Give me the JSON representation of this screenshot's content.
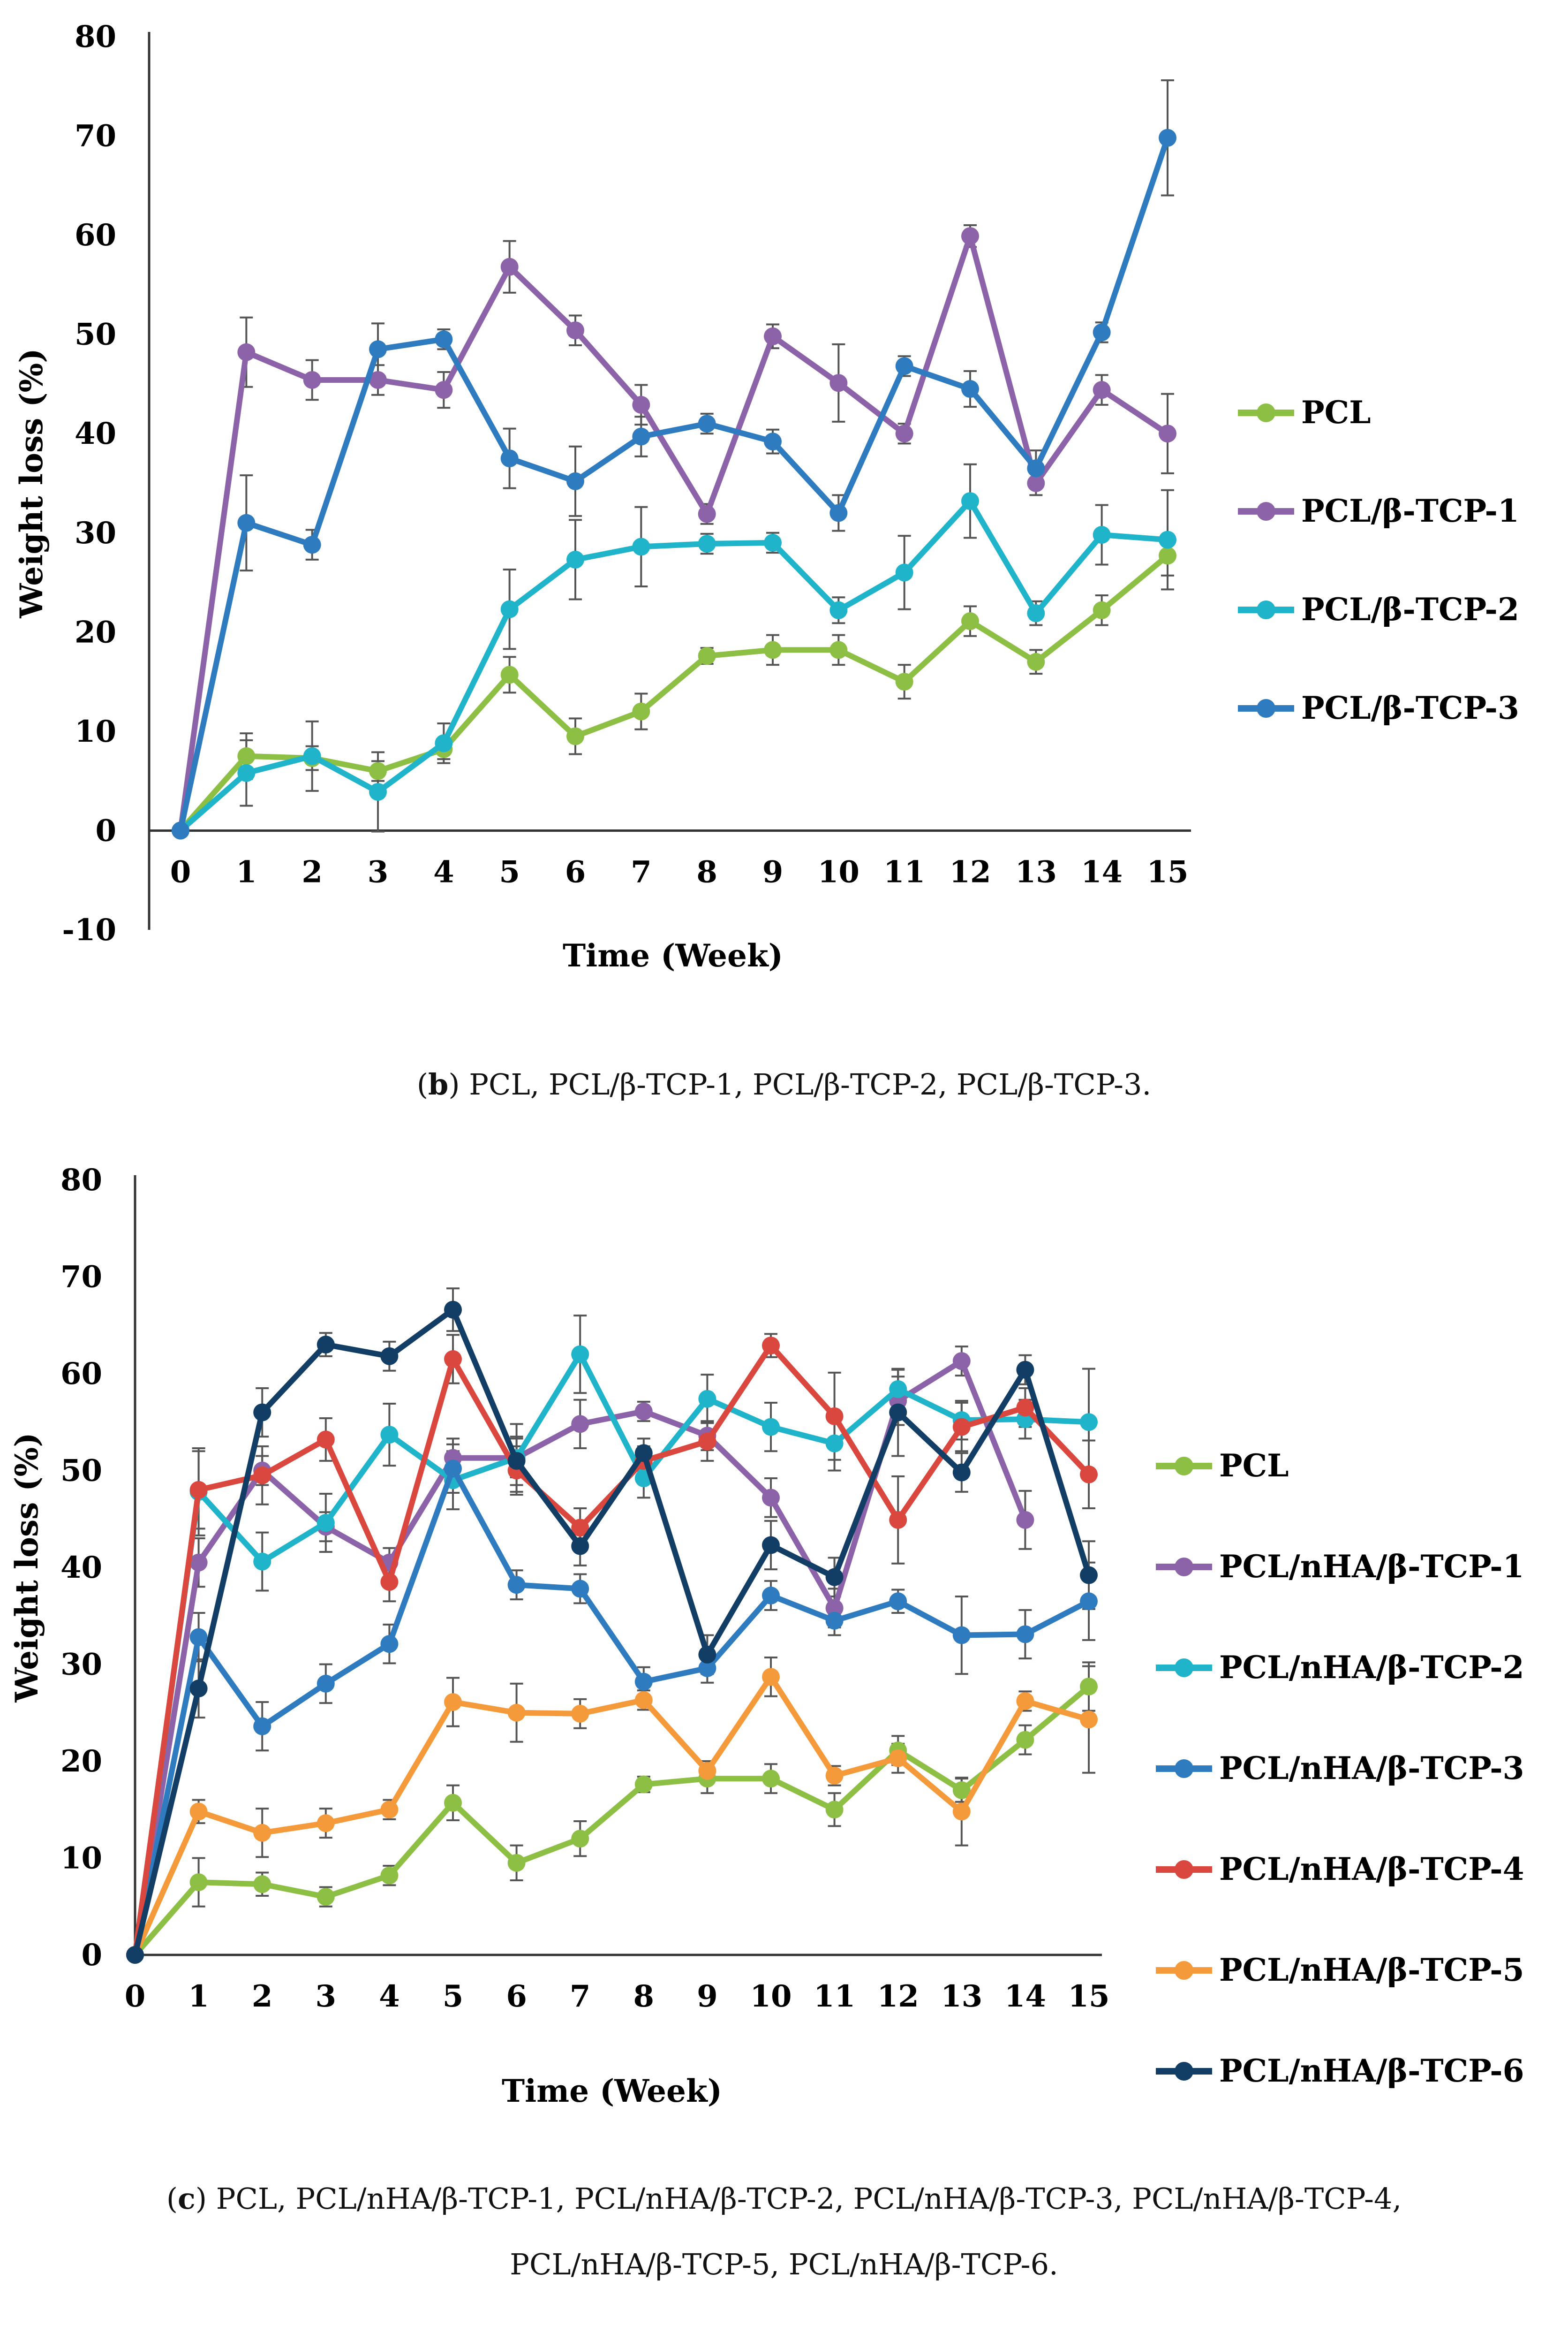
{
  "chart_data": [
    {
      "type": "line",
      "xlabel": "Time (Week)",
      "ylabel": "Weight loss (%)",
      "xlim": [
        0,
        15
      ],
      "ylim": [
        -10,
        80
      ],
      "x_ticks": [
        "0",
        "1",
        "2",
        "3",
        "4",
        "5",
        "6",
        "7",
        "8",
        "9",
        "10",
        "11",
        "12",
        "13",
        "14",
        "15"
      ],
      "y_ticks": [
        "80",
        "70",
        "60",
        "50",
        "40",
        "30",
        "20",
        "10",
        "0",
        "-10"
      ],
      "legend_position": "right",
      "grid": false,
      "error_bars": true,
      "x": [
        0,
        1,
        2,
        3,
        4,
        5,
        6,
        7,
        8,
        9,
        10,
        11,
        12,
        13,
        14,
        15
      ],
      "series": [
        {
          "name": "PCL",
          "color": "#8dbf44",
          "values": [
            0,
            7.5,
            7.3,
            6.0,
            8.2,
            15.7,
            9.5,
            12.0,
            17.6,
            18.2,
            18.2,
            15.0,
            21.1,
            17.0,
            22.2,
            27.7
          ],
          "errors": [
            0,
            2.3,
            1.2,
            1.0,
            1.0,
            1.8,
            1.8,
            1.8,
            0.8,
            1.5,
            1.5,
            1.7,
            1.5,
            1.2,
            1.5,
            2.0
          ]
        },
        {
          "name": "PCL/β-TCP-1",
          "color": "#8c62a8",
          "values": [
            0,
            48.2,
            45.4,
            45.4,
            44.4,
            56.8,
            50.4,
            42.9,
            31.9,
            49.8,
            45.1,
            40.0,
            59.9,
            35.0,
            44.4,
            40.0
          ],
          "errors": [
            0,
            3.5,
            2.0,
            1.5,
            1.8,
            2.6,
            1.5,
            2.0,
            1.0,
            1.2,
            3.9,
            1.0,
            1.1,
            1.2,
            1.5,
            4.0
          ]
        },
        {
          "name": "PCL/β-TCP-2",
          "color": "#1fb4c9",
          "values": [
            0,
            5.8,
            7.5,
            3.9,
            8.8,
            22.3,
            27.3,
            28.6,
            28.9,
            29.0,
            22.2,
            26.0,
            33.2,
            21.9,
            29.8,
            29.3
          ],
          "errors": [
            0,
            3.3,
            3.5,
            4.0,
            2.0,
            4.0,
            4.0,
            4.0,
            1.0,
            1.0,
            1.3,
            3.7,
            3.7,
            1.2,
            3.0,
            5.0
          ]
        },
        {
          "name": "PCL/β-TCP-3",
          "color": "#2e7cbf",
          "values": [
            0,
            31.0,
            28.8,
            48.5,
            49.5,
            37.5,
            35.2,
            39.7,
            41.0,
            39.2,
            32.0,
            46.8,
            44.5,
            36.5,
            50.2,
            69.8
          ],
          "errors": [
            0,
            4.8,
            1.5,
            2.6,
            1.0,
            3.0,
            3.5,
            2.0,
            1.0,
            1.2,
            1.8,
            1.0,
            1.8,
            1.8,
            1.0,
            5.8
          ]
        }
      ]
    },
    {
      "type": "line",
      "xlabel": "Time (Week)",
      "ylabel": "Weight loss (%)",
      "xlim": [
        0,
        15
      ],
      "ylim": [
        0,
        80
      ],
      "x_ticks": [
        "0",
        "1",
        "2",
        "3",
        "4",
        "5",
        "6",
        "7",
        "8",
        "9",
        "10",
        "11",
        "12",
        "13",
        "14",
        "15"
      ],
      "y_ticks": [
        "80",
        "70",
        "60",
        "50",
        "40",
        "30",
        "20",
        "10",
        "0"
      ],
      "legend_position": "right",
      "grid": false,
      "error_bars": true,
      "x": [
        0,
        1,
        2,
        3,
        4,
        5,
        6,
        7,
        8,
        9,
        10,
        11,
        12,
        13,
        14,
        15
      ],
      "series": [
        {
          "name": "PCL",
          "color": "#8dbf44",
          "values": [
            0,
            7.5,
            7.3,
            6.0,
            8.2,
            15.7,
            9.5,
            12.0,
            17.6,
            18.2,
            18.2,
            15.0,
            21.1,
            17.0,
            22.2,
            27.7
          ],
          "errors": [
            0,
            2.5,
            1.2,
            1.0,
            1.0,
            1.8,
            1.8,
            1.8,
            0.8,
            1.5,
            1.5,
            1.7,
            1.5,
            1.2,
            1.5,
            2.5
          ]
        },
        {
          "name": "PCL/nHA/β-TCP-1",
          "color": "#8c62a8",
          "values": [
            0,
            40.5,
            50.0,
            44.2,
            40.5,
            51.3,
            51.3,
            54.8,
            56.1,
            53.6,
            47.2,
            35.8,
            57.2,
            61.3,
            44.9,
            null
          ],
          "errors": [
            0,
            2.5,
            1.5,
            1.5,
            1.5,
            2.0,
            2.0,
            2.5,
            1.0,
            1.5,
            2.0,
            2.0,
            2.5,
            1.5,
            3.0,
            0
          ]
        },
        {
          "name": "PCL/nHA/β-TCP-2",
          "color": "#1fb4c9",
          "values": [
            0,
            47.8,
            40.6,
            44.6,
            53.7,
            49.0,
            51.3,
            62.0,
            49.2,
            57.4,
            54.5,
            52.8,
            58.4,
            55.2,
            55.3,
            55.0
          ],
          "errors": [
            0,
            4.5,
            3.0,
            3.0,
            3.2,
            3.0,
            3.5,
            4.0,
            2.0,
            2.5,
            2.5,
            2.8,
            2.0,
            2.0,
            2.0,
            5.5
          ]
        },
        {
          "name": "PCL/nHA/β-TCP-3",
          "color": "#2e7cbf",
          "values": [
            0,
            32.8,
            23.6,
            28.0,
            32.1,
            50.2,
            38.2,
            37.8,
            28.2,
            29.6,
            37.1,
            34.5,
            36.5,
            33.0,
            33.1,
            36.5
          ],
          "errors": [
            0,
            2.5,
            2.5,
            2.0,
            2.0,
            2.5,
            1.5,
            1.5,
            1.5,
            1.5,
            1.5,
            1.5,
            1.2,
            4.0,
            2.5,
            4.0
          ]
        },
        {
          "name": "PCL/nHA/β-TCP-4",
          "color": "#d9473e",
          "values": [
            0,
            48.0,
            49.5,
            53.2,
            38.5,
            61.5,
            50.0,
            44.1,
            51.0,
            53.0,
            62.9,
            55.6,
            44.9,
            54.5,
            56.5,
            49.6
          ],
          "errors": [
            0,
            4.0,
            3.0,
            2.2,
            2.0,
            2.5,
            2.5,
            2.0,
            1.5,
            2.0,
            1.2,
            4.5,
            4.5,
            2.5,
            2.0,
            3.5
          ]
        },
        {
          "name": "PCL/nHA/β-TCP-5",
          "color": "#f59a3a",
          "values": [
            0,
            14.8,
            12.6,
            13.6,
            15.0,
            26.1,
            25.0,
            24.9,
            26.3,
            19.0,
            28.7,
            18.5,
            20.3,
            14.8,
            26.2,
            24.3
          ],
          "errors": [
            0,
            1.2,
            2.5,
            1.5,
            1.0,
            2.5,
            3.0,
            1.5,
            1.0,
            1.0,
            2.0,
            1.0,
            1.5,
            3.5,
            1.0,
            5.5
          ]
        },
        {
          "name": "PCL/nHA/β-TCP-6",
          "color": "#123e66",
          "values": [
            0,
            27.5,
            56.0,
            63.0,
            61.8,
            66.6,
            51.0,
            42.2,
            51.8,
            31.0,
            42.3,
            39.0,
            56.0,
            49.8,
            60.4,
            39.2
          ],
          "errors": [
            0,
            3.0,
            2.5,
            1.2,
            1.5,
            2.2,
            2.5,
            2.0,
            1.5,
            2.0,
            2.5,
            2.0,
            4.5,
            2.0,
            1.5,
            3.5
          ]
        }
      ]
    }
  ],
  "captions": {
    "b_letter": "b",
    "b_text": "PCL, PCL/β-TCP-1, PCL/β-TCP-2, PCL/β-TCP-3.",
    "c_letter": "c",
    "c_line1": "PCL, PCL/nHA/β-TCP-1, PCL/nHA/β-TCP-2, PCL/nHA/β-TCP-3, PCL/nHA/β-TCP-4,",
    "c_line2": "PCL/nHA/β-TCP-5, PCL/nHA/β-TCP-6."
  }
}
